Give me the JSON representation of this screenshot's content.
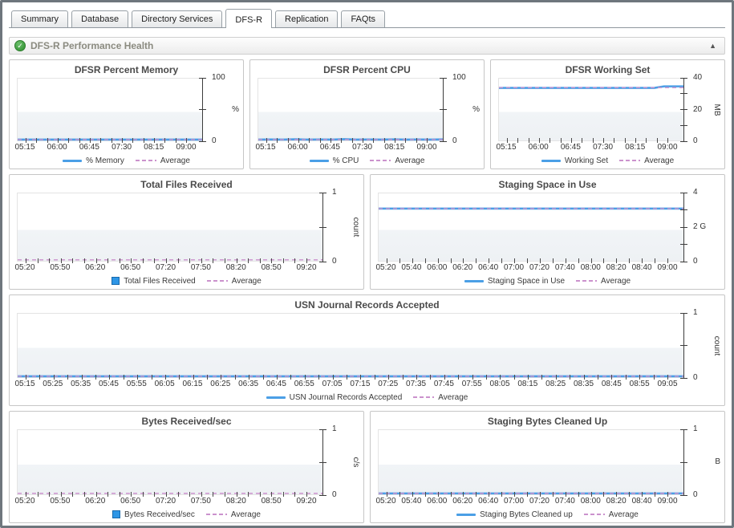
{
  "tabs": [
    {
      "label": "Summary",
      "active": false
    },
    {
      "label": "Database",
      "active": false
    },
    {
      "label": "Directory Services",
      "active": false
    },
    {
      "label": "DFS-R",
      "active": true
    },
    {
      "label": "Replication",
      "active": false
    },
    {
      "label": "FAQts",
      "active": false
    }
  ],
  "section": {
    "title": "DFS-R Performance Health",
    "status_glyph": "✓",
    "collapse_glyph": "▲"
  },
  "colors": {
    "series_line": "#4b9fe6",
    "series_square": "#2e96e6",
    "average_line": "#cb92cd",
    "axis": "#3c3c3c",
    "panel_border": "#c6c6c6",
    "plot_band": "#f1f4f7",
    "header_text": "#8b8b80",
    "tab_border": "#98a0a6",
    "window_border": "#6e767d",
    "status_green": "#3f9c3f"
  },
  "chart_data": [
    {
      "type": "line",
      "title": "DFSR Percent Memory",
      "ylabel": "%",
      "ylabel_rotated": false,
      "ylim": [
        0,
        100
      ],
      "yticks": [
        {
          "p": 0,
          "l": "0"
        },
        {
          "p": 0.5,
          "l": ""
        },
        {
          "p": 1,
          "l": "100"
        }
      ],
      "x_labels": [
        "05:15",
        "06:00",
        "06:45",
        "07:30",
        "08:15",
        "09:00"
      ],
      "x_subdiv": 3,
      "series": [
        {
          "name": "% Memory",
          "swatch": "line",
          "values": [
            1.3,
            1.3,
            1.3,
            1.3,
            1.3,
            1.3,
            1.3,
            1.3,
            1.3,
            1.3
          ]
        }
      ],
      "average": {
        "label": "Average",
        "value": 1.3
      }
    },
    {
      "type": "line",
      "title": "DFSR Percent CPU",
      "ylabel": "%",
      "ylabel_rotated": false,
      "ylim": [
        0,
        100
      ],
      "yticks": [
        {
          "p": 0,
          "l": "0"
        },
        {
          "p": 0.5,
          "l": ""
        },
        {
          "p": 1,
          "l": "100"
        }
      ],
      "x_labels": [
        "05:15",
        "06:00",
        "06:45",
        "07:30",
        "08:15",
        "09:00"
      ],
      "x_subdiv": 3,
      "series": [
        {
          "name": "% CPU",
          "swatch": "line",
          "values": [
            1.2,
            1.6,
            1.2,
            1.9,
            1.3,
            1.5,
            1.2,
            2.0,
            1.3,
            1.6,
            1.2,
            1.8,
            1.3,
            1.5,
            1.2,
            1.7
          ]
        }
      ],
      "average": {
        "label": "Average",
        "value": 1.4
      }
    },
    {
      "type": "line",
      "title": "DFSR Working Set",
      "ylabel": "MB",
      "ylabel_rotated": true,
      "ylim": [
        0,
        40
      ],
      "yticks": [
        {
          "p": 0,
          "l": "0"
        },
        {
          "p": 0.25,
          "l": ""
        },
        {
          "p": 0.5,
          "l": "20"
        },
        {
          "p": 0.75,
          "l": ""
        },
        {
          "p": 1,
          "l": "40"
        }
      ],
      "x_labels": [
        "05:15",
        "06:00",
        "06:45",
        "07:30",
        "08:15",
        "09:00"
      ],
      "x_subdiv": 3,
      "series": [
        {
          "name": "Working Set",
          "swatch": "line",
          "values": [
            34,
            34,
            34,
            34,
            34,
            34,
            34,
            34,
            34,
            34,
            34,
            34,
            34,
            34,
            34,
            34,
            34,
            35,
            35,
            35
          ]
        }
      ],
      "average": {
        "label": "Average",
        "value": 34.2
      }
    },
    {
      "type": "bar",
      "title": "Total Files Received",
      "ylabel": "count",
      "ylabel_rotated": true,
      "ylim": [
        0,
        1
      ],
      "yticks": [
        {
          "p": 0,
          "l": "0"
        },
        {
          "p": 0.5,
          "l": ""
        },
        {
          "p": 1,
          "l": "1"
        }
      ],
      "x_labels": [
        "05:20",
        "05:50",
        "06:20",
        "06:50",
        "07:20",
        "07:50",
        "08:20",
        "08:50",
        "09:20"
      ],
      "x_subdiv": 3,
      "series": [
        {
          "name": "Total Files Received",
          "swatch": "square",
          "values": [
            0,
            0
          ]
        }
      ],
      "average": {
        "label": "Average",
        "value": 0
      }
    },
    {
      "type": "line",
      "title": "Staging Space in Use",
      "ylabel": "",
      "ylabel_rotated": false,
      "ylim": [
        0,
        4
      ],
      "yticks": [
        {
          "p": 0,
          "l": "0"
        },
        {
          "p": 0.25,
          "l": ""
        },
        {
          "p": 0.5,
          "l": "2 G"
        },
        {
          "p": 0.75,
          "l": ""
        },
        {
          "p": 1,
          "l": "4"
        }
      ],
      "x_labels": [
        "05:20",
        "05:40",
        "06:00",
        "06:20",
        "06:40",
        "07:00",
        "07:20",
        "07:40",
        "08:00",
        "08:20",
        "08:40",
        "09:00"
      ],
      "x_subdiv": 2,
      "series": [
        {
          "name": "Staging Space in Use",
          "swatch": "line",
          "values": [
            3.1,
            3.1
          ]
        }
      ],
      "average": {
        "label": "Average",
        "value": 3.1
      }
    },
    {
      "type": "line",
      "title": "USN Journal Records Accepted",
      "ylabel": "count",
      "ylabel_rotated": true,
      "ylim": [
        0,
        1
      ],
      "yticks": [
        {
          "p": 0,
          "l": "0"
        },
        {
          "p": 0.5,
          "l": ""
        },
        {
          "p": 1,
          "l": "1"
        }
      ],
      "x_labels": [
        "05:15",
        "05:25",
        "05:35",
        "05:45",
        "05:55",
        "06:05",
        "06:15",
        "06:25",
        "06:35",
        "06:45",
        "06:55",
        "07:05",
        "07:15",
        "07:25",
        "07:35",
        "07:45",
        "07:55",
        "08:05",
        "08:15",
        "08:25",
        "08:35",
        "08:45",
        "08:55",
        "09:05"
      ],
      "x_subdiv": 2,
      "series": [
        {
          "name": "USN Journal Records Accepted",
          "swatch": "line",
          "values": [
            0,
            0
          ]
        }
      ],
      "average": {
        "label": "Average",
        "value": 0
      }
    },
    {
      "type": "bar",
      "title": "Bytes Received/sec",
      "ylabel": "c/s",
      "ylabel_rotated": true,
      "ylim": [
        0,
        1
      ],
      "yticks": [
        {
          "p": 0,
          "l": "0"
        },
        {
          "p": 0.5,
          "l": ""
        },
        {
          "p": 1,
          "l": "1"
        }
      ],
      "x_labels": [
        "05:20",
        "05:50",
        "06:20",
        "06:50",
        "07:20",
        "07:50",
        "08:20",
        "08:50",
        "09:20"
      ],
      "x_subdiv": 3,
      "series": [
        {
          "name": "Bytes Received/sec",
          "swatch": "square",
          "values": [
            0,
            0
          ]
        }
      ],
      "average": {
        "label": "Average",
        "value": 0
      }
    },
    {
      "type": "line",
      "title": "Staging Bytes Cleaned Up",
      "ylabel": "B",
      "ylabel_rotated": false,
      "ylim": [
        0,
        1
      ],
      "yticks": [
        {
          "p": 0,
          "l": "0"
        },
        {
          "p": 0.5,
          "l": ""
        },
        {
          "p": 1,
          "l": "1"
        }
      ],
      "x_labels": [
        "05:20",
        "05:40",
        "06:00",
        "06:20",
        "06:40",
        "07:00",
        "07:20",
        "07:40",
        "08:00",
        "08:20",
        "08:40",
        "09:00"
      ],
      "x_subdiv": 2,
      "series": [
        {
          "name": "Staging Bytes Cleaned up",
          "swatch": "line",
          "values": [
            0,
            0
          ]
        }
      ],
      "average": {
        "label": "Average",
        "value": 0
      }
    }
  ]
}
